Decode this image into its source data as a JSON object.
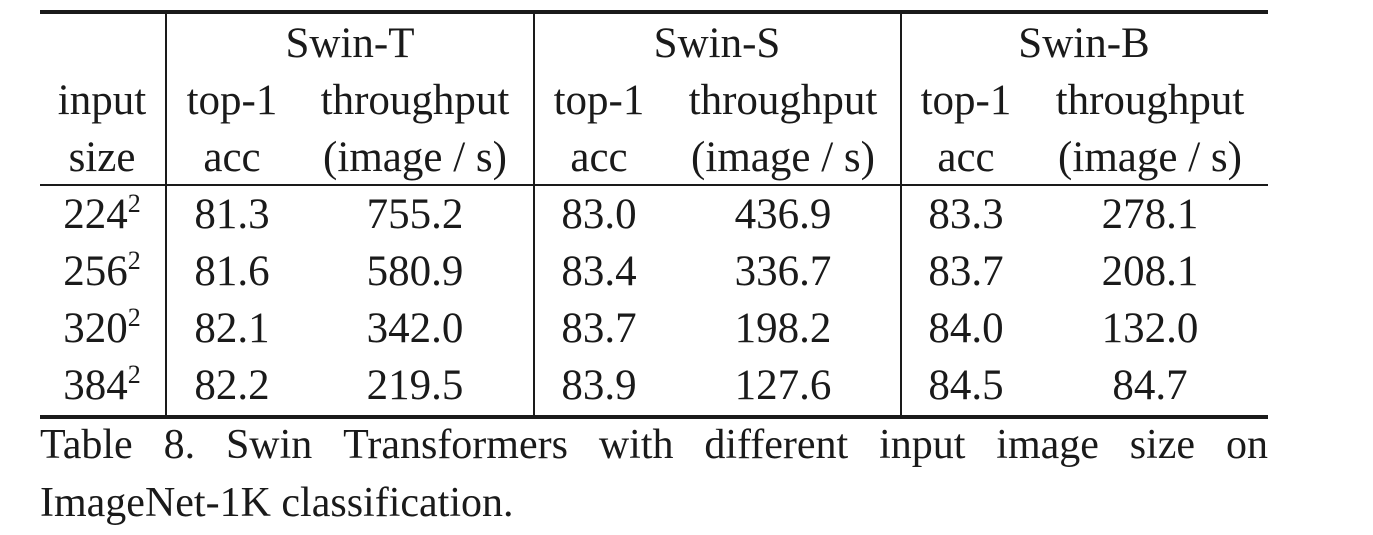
{
  "table": {
    "models": [
      "Swin-T",
      "Swin-S",
      "Swin-B"
    ],
    "first_col_header": [
      "input",
      "size"
    ],
    "sub_headers": [
      [
        "top-1",
        "acc"
      ],
      [
        "throughput",
        "(image / s)"
      ]
    ],
    "rows": [
      {
        "size": "224",
        "exp": "2",
        "values": [
          "81.3",
          "755.2",
          "83.0",
          "436.9",
          "83.3",
          "278.1"
        ]
      },
      {
        "size": "256",
        "exp": "2",
        "values": [
          "81.6",
          "580.9",
          "83.4",
          "336.7",
          "83.7",
          "208.1"
        ]
      },
      {
        "size": "320",
        "exp": "2",
        "values": [
          "82.1",
          "342.0",
          "83.7",
          "198.2",
          "84.0",
          "132.0"
        ]
      },
      {
        "size": "384",
        "exp": "2",
        "values": [
          "82.2",
          "219.5",
          "83.9",
          "127.6",
          "84.5",
          "84.7"
        ]
      }
    ]
  },
  "caption": {
    "line1_words": [
      "Table",
      "8.",
      "Swin",
      "Transformers",
      "with",
      "different",
      "input",
      "image",
      "size",
      "on"
    ],
    "line2": "ImageNet-1K classification."
  }
}
